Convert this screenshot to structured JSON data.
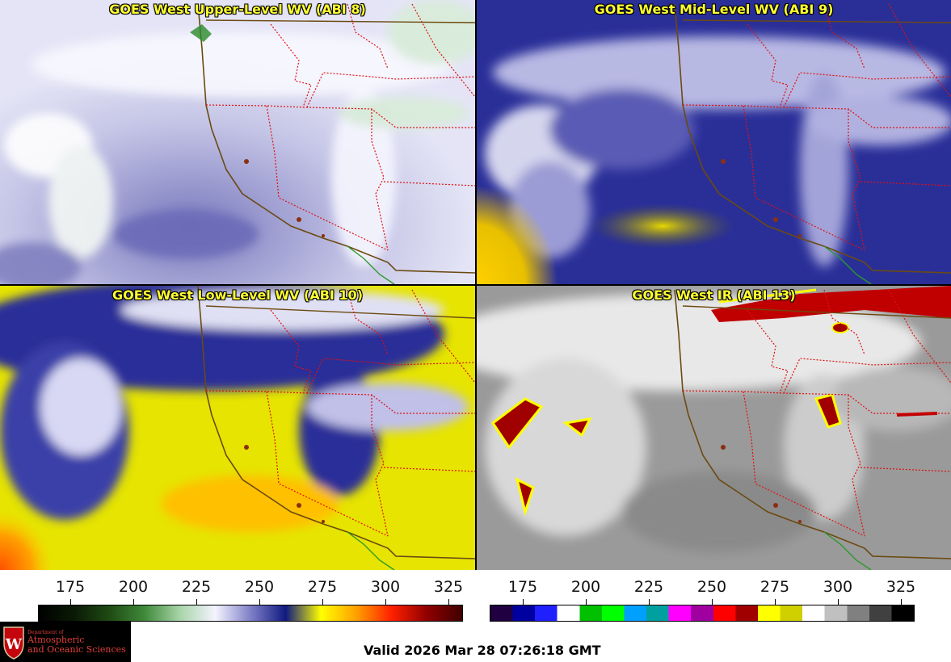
{
  "panels": [
    {
      "title": "GOES West Upper-Level WV (ABI 8)",
      "kind": "wv-upper"
    },
    {
      "title": "GOES West Mid-Level WV (ABI 9)",
      "kind": "wv-mid"
    },
    {
      "title": "GOES West Low-Level WV (ABI 10)",
      "kind": "wv-low"
    },
    {
      "title": "GOES West IR (ABI 13)",
      "kind": "ir"
    }
  ],
  "colorbars": {
    "wv": {
      "ticks": [
        "175",
        "200",
        "225",
        "250",
        "275",
        "300",
        "325"
      ],
      "stops": [
        "#000000",
        "#0a1a05",
        "#1f4a14",
        "#3f8a3a",
        "#a8d4a8",
        "#f4f4ff",
        "#8080c8",
        "#101a80",
        "#ffff00",
        "#ffa000",
        "#ff2000",
        "#900000",
        "#400000"
      ]
    },
    "ir": {
      "ticks": [
        "175",
        "200",
        "225",
        "250",
        "275",
        "300",
        "325"
      ],
      "segments": [
        "#200040",
        "#0000a0",
        "#2020ff",
        "#ffffff",
        "#00c000",
        "#00ff00",
        "#00a0ff",
        "#00a0a0",
        "#ff00ff",
        "#a000a0",
        "#ff0000",
        "#a00000",
        "#ffff00",
        "#d0d000",
        "#ffffff",
        "#c0c0c0",
        "#808080",
        "#404040",
        "#000000"
      ]
    }
  },
  "logo": {
    "line1": "Department of",
    "line2": "Atmospheric",
    "line3": "and Oceanic Sciences"
  },
  "valid_time": "Valid 2026 Mar 28 07:26:18 GMT"
}
